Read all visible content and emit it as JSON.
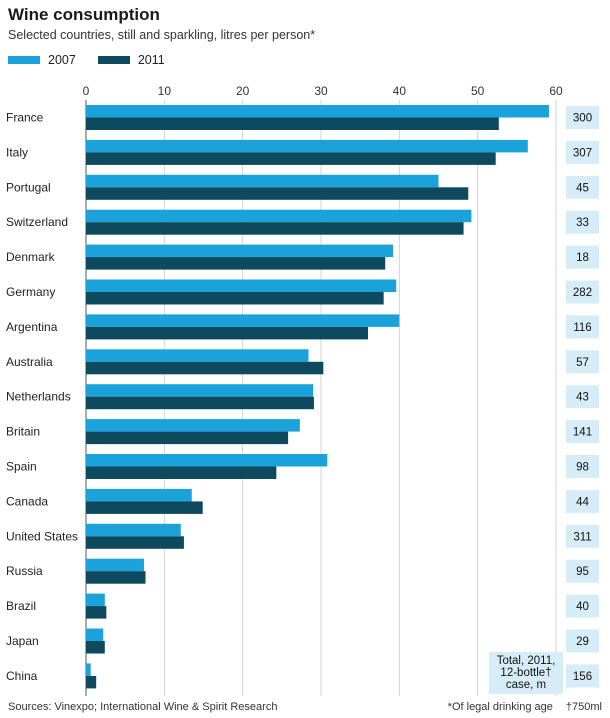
{
  "title": "Wine consumption",
  "subtitle": "Selected countries, still and sparkling, litres per person*",
  "legend": {
    "series_2007": "2007",
    "series_2011": "2011"
  },
  "colors": {
    "series_2007": "#1ba2db",
    "series_2011": "#0d4a5e",
    "total_box": "#d6edf8",
    "grid": "#c9c9c9"
  },
  "totals_label": "Total, 2011, 12-bottle† case, m",
  "sources": "Sources: Vinexpo; International Wine & Spirit Research",
  "footnote_legal": "*Of legal drinking age",
  "footnote_bottle": "†750ml",
  "chart_data": {
    "type": "bar",
    "orientation": "horizontal",
    "title": "Wine consumption",
    "subtitle": "Selected countries, still and sparkling, litres per person*",
    "xlim": [
      0,
      60
    ],
    "xticks": [
      "0",
      "10",
      "20",
      "30",
      "40",
      "50",
      "60"
    ],
    "grid": true,
    "categories": [
      "France",
      "Italy",
      "Portugal",
      "Switzerland",
      "Denmark",
      "Germany",
      "Argentina",
      "Australia",
      "Netherlands",
      "Britain",
      "Spain",
      "Canada",
      "United States",
      "Russia",
      "Brazil",
      "Japan",
      "China"
    ],
    "series": [
      {
        "name": "2007",
        "values": [
          59.1,
          56.4,
          45.0,
          49.2,
          39.2,
          39.6,
          40.0,
          28.4,
          29.0,
          27.3,
          30.8,
          13.5,
          12.1,
          7.4,
          2.4,
          2.2,
          0.6
        ]
      },
      {
        "name": "2011",
        "values": [
          52.7,
          52.3,
          48.8,
          48.2,
          38.2,
          38.0,
          36.0,
          30.3,
          29.1,
          25.8,
          24.3,
          14.9,
          12.5,
          7.6,
          2.6,
          2.4,
          1.3
        ]
      }
    ],
    "totals": [
      "300",
      "307",
      "45",
      "33",
      "18",
      "282",
      "116",
      "57",
      "43",
      "141",
      "98",
      "44",
      "311",
      "95",
      "40",
      "29",
      "156"
    ]
  }
}
